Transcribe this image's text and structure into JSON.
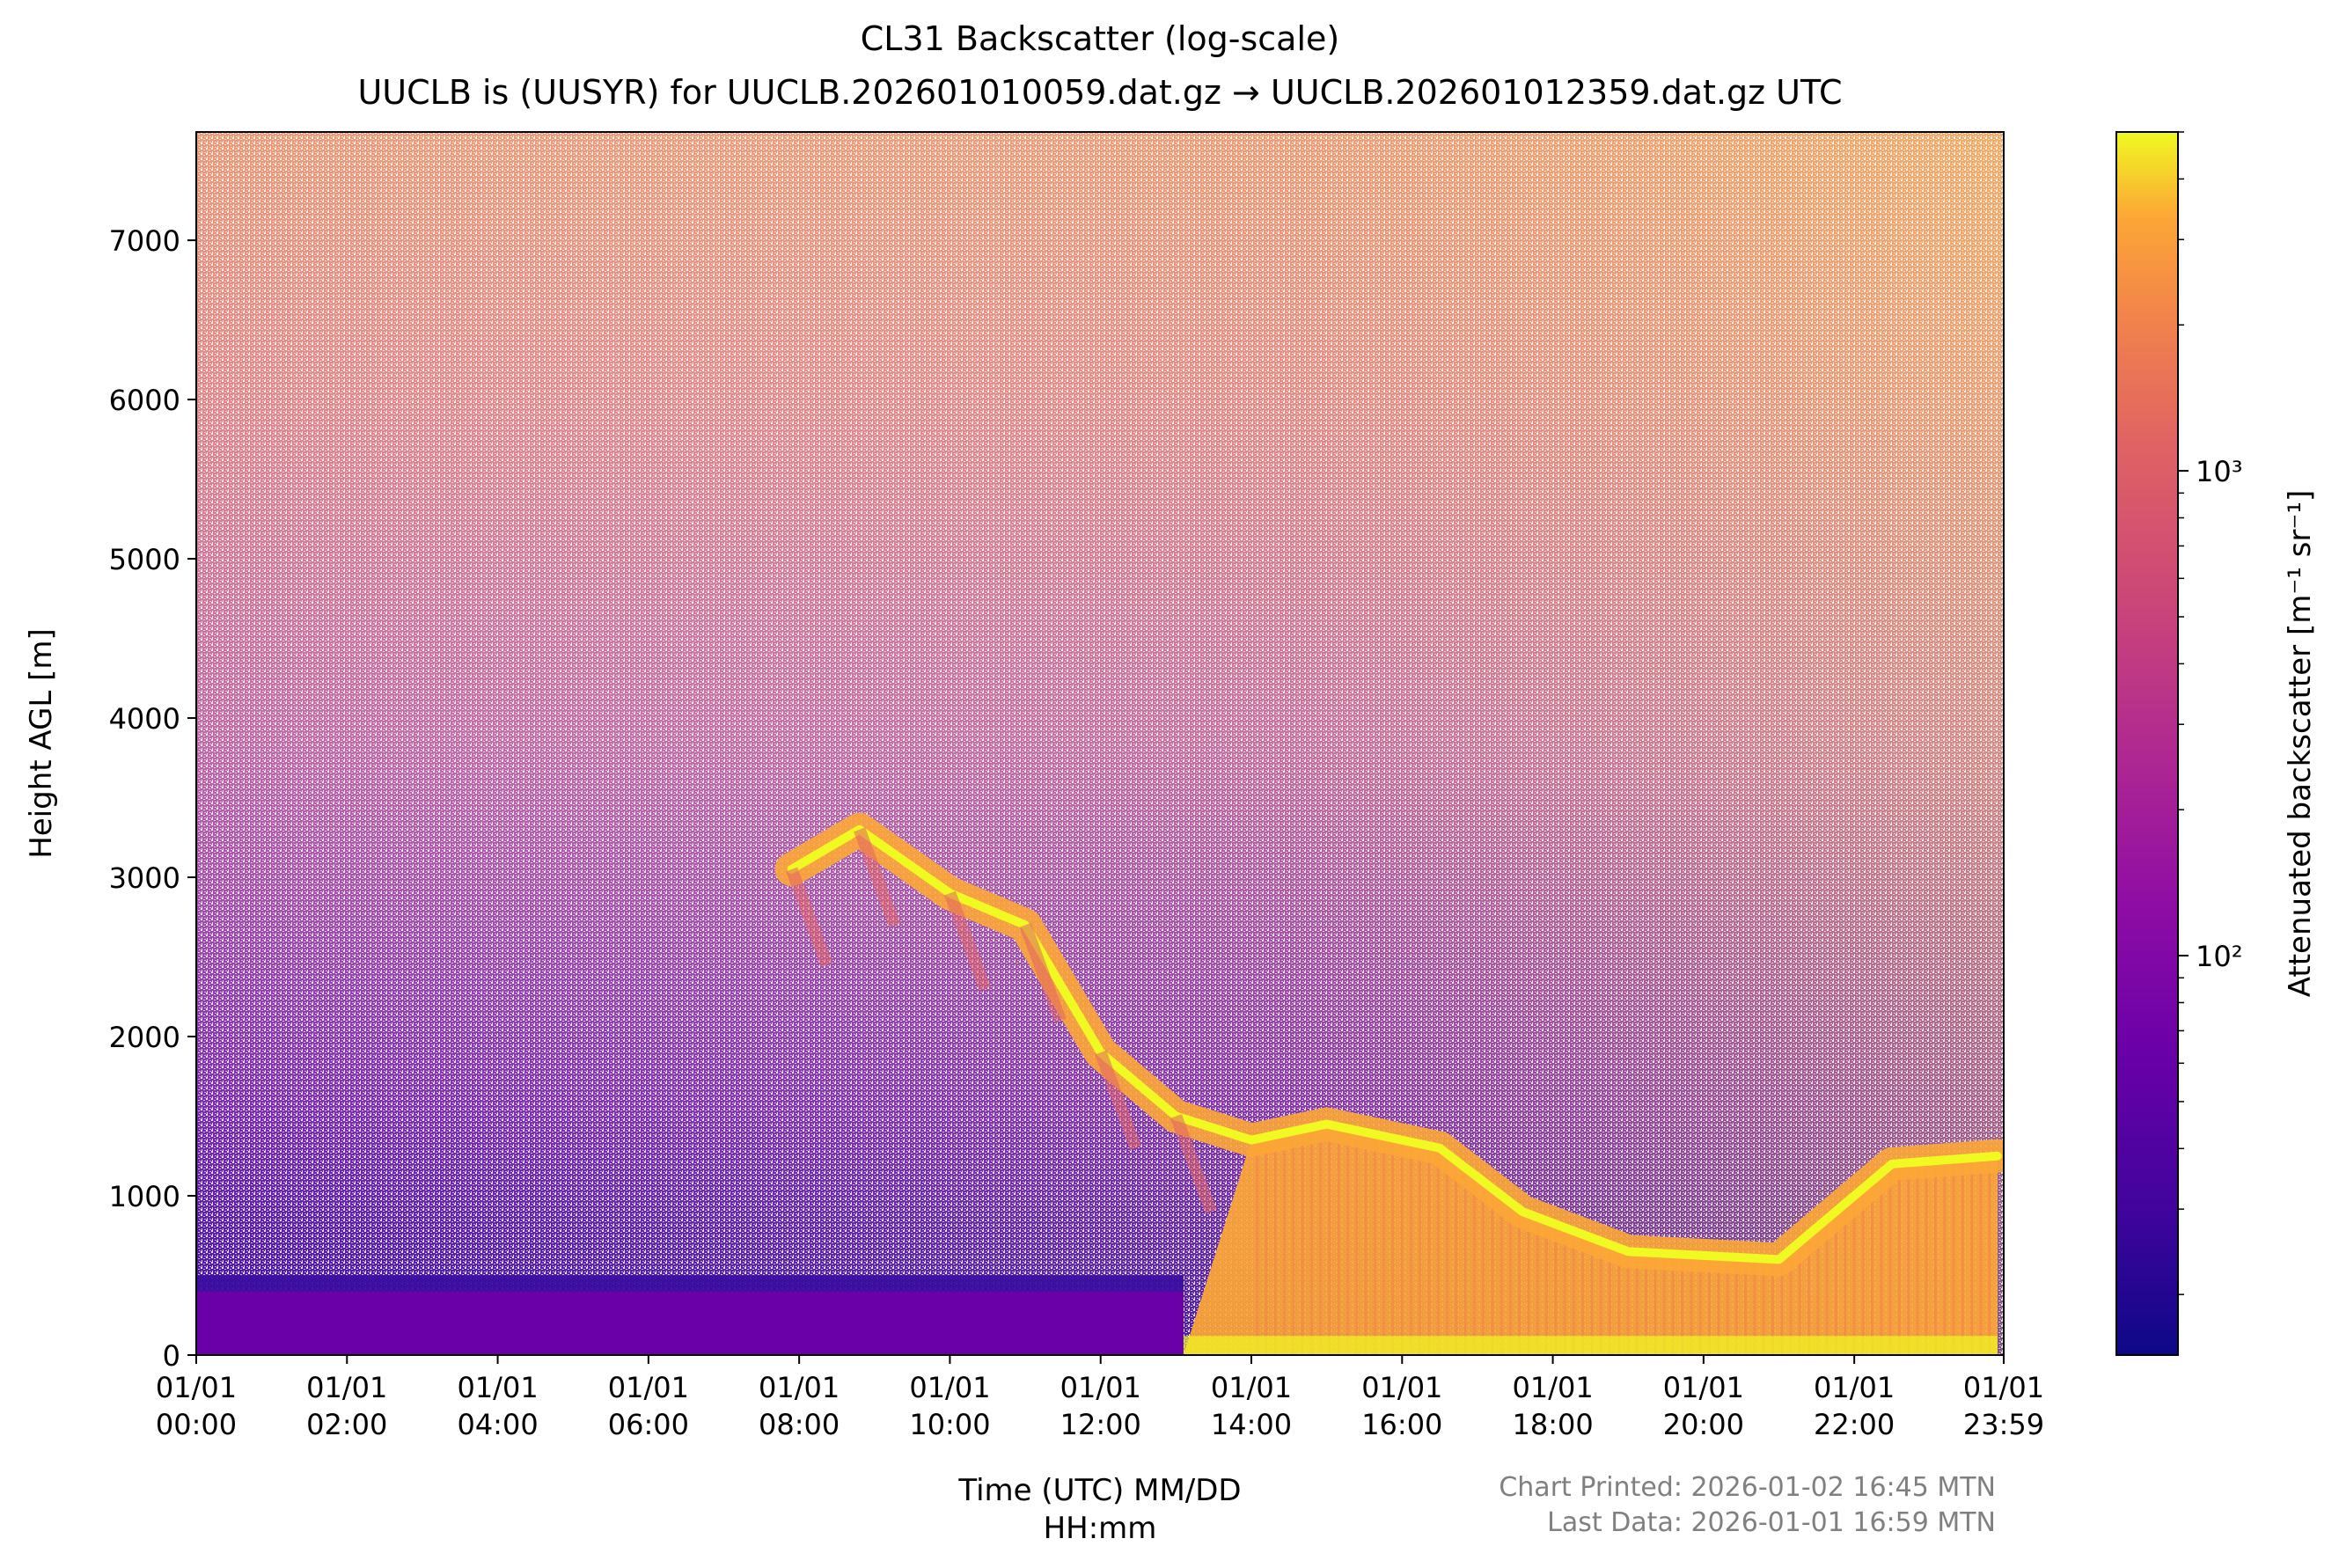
{
  "chart_data": {
    "type": "heatmap",
    "title": "CL31 Backscatter (log-scale)",
    "subtitle": "UUCLB is (UUSYR) for UUCLB.202601010059.dat.gz → UUCLB.202601012359.dat.gz UTC",
    "xlabel_line1": "Time (UTC) MM/DD",
    "xlabel_line2": "HH:mm",
    "ylabel": "Height AGL [m]",
    "xlim_hours": [
      0,
      23.983
    ],
    "ylim": [
      0,
      7680
    ],
    "x_ticks": [
      {
        "hour": 0,
        "date": "01/01",
        "time": "00:00"
      },
      {
        "hour": 2,
        "date": "01/01",
        "time": "02:00"
      },
      {
        "hour": 4,
        "date": "01/01",
        "time": "04:00"
      },
      {
        "hour": 6,
        "date": "01/01",
        "time": "06:00"
      },
      {
        "hour": 8,
        "date": "01/01",
        "time": "08:00"
      },
      {
        "hour": 10,
        "date": "01/01",
        "time": "10:00"
      },
      {
        "hour": 12,
        "date": "01/01",
        "time": "12:00"
      },
      {
        "hour": 14,
        "date": "01/01",
        "time": "14:00"
      },
      {
        "hour": 16,
        "date": "01/01",
        "time": "16:00"
      },
      {
        "hour": 18,
        "date": "01/01",
        "time": "18:00"
      },
      {
        "hour": 20,
        "date": "01/01",
        "time": "20:00"
      },
      {
        "hour": 22,
        "date": "01/01",
        "time": "22:00"
      },
      {
        "hour": 23.983,
        "date": "01/01",
        "time": "23:59"
      }
    ],
    "y_ticks": [
      0,
      1000,
      2000,
      3000,
      4000,
      5000,
      6000,
      7000
    ],
    "colorbar": {
      "label": "Attenuated backscatter [m⁻¹ sr⁻¹]",
      "scale": "log",
      "range": [
        15,
        5000
      ],
      "colormap": "plasma",
      "ticks": [
        {
          "value": 100,
          "label": "10²"
        },
        {
          "value": 1000,
          "label": "10³"
        }
      ]
    },
    "features": {
      "near_surface_layer": {
        "top_m": 500,
        "from_hour": 0,
        "to_hour": 13.1
      },
      "cloud_layer_descent": [
        {
          "hour": 7.9,
          "base_m": 3050
        },
        {
          "hour": 8.8,
          "base_m": 3300
        },
        {
          "hour": 10.0,
          "base_m": 2900
        },
        {
          "hour": 11.0,
          "base_m": 2700
        },
        {
          "hour": 12.0,
          "base_m": 1900
        },
        {
          "hour": 13.0,
          "base_m": 1500
        },
        {
          "hour": 14.0,
          "base_m": 1350
        },
        {
          "hour": 15.0,
          "base_m": 1450
        },
        {
          "hour": 16.5,
          "base_m": 1300
        },
        {
          "hour": 17.6,
          "base_m": 900
        },
        {
          "hour": 19.0,
          "base_m": 650
        },
        {
          "hour": 21.0,
          "base_m": 600
        },
        {
          "hour": 22.5,
          "base_m": 1200
        },
        {
          "hour": 23.9,
          "base_m": 1250
        }
      ],
      "precipitation_columns": {
        "from_hour": 13.1,
        "to_hour": 23.9
      }
    },
    "footer": {
      "printed": "Chart Printed: 2026-01-02 16:45 MTN",
      "last_data": "Last Data: 2026-01-01 16:59 MTN"
    },
    "colors": {
      "plasma_low": "#0d0887",
      "plasma_mid": "#cc4778",
      "plasma_high": "#f0f921",
      "text_gray": "#808080"
    }
  }
}
